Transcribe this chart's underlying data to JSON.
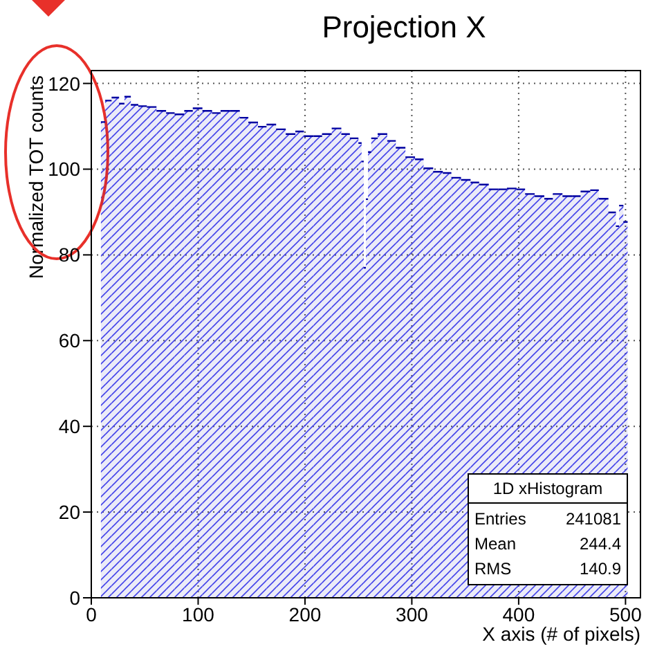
{
  "chart_data": {
    "type": "histogram",
    "title": "Projection X",
    "xlabel": "X axis (# of pixels)",
    "ylabel": "Normalized TOT counts",
    "bins": [
      9,
      13,
      19,
      26,
      31,
      37,
      44,
      52,
      61,
      70,
      78,
      87,
      95,
      104,
      113,
      121,
      130,
      139,
      147,
      156,
      164,
      173,
      182,
      191,
      199,
      208,
      216,
      225,
      234,
      242,
      250,
      253,
      255,
      257,
      259,
      262,
      268,
      277,
      285,
      294,
      303,
      311,
      320,
      329,
      337,
      346,
      355,
      363,
      372,
      381,
      389,
      398,
      406,
      415,
      424,
      432,
      441,
      450,
      458,
      467,
      475,
      484,
      491,
      494,
      498,
      502
    ],
    "values": [
      111,
      116,
      116.7,
      115.3,
      116.9,
      115,
      114.7,
      114.5,
      113.6,
      113.1,
      112.8,
      113.6,
      114.2,
      113.6,
      113.1,
      113.6,
      113.6,
      112,
      110.9,
      109.9,
      110.4,
      109.3,
      108.2,
      108.8,
      107.7,
      107.7,
      108.2,
      109.5,
      108.2,
      107.2,
      106.1,
      101.8,
      77,
      93,
      104,
      107.2,
      108.2,
      106.6,
      105,
      102.8,
      102.3,
      100.2,
      99.4,
      99.1,
      98,
      97.5,
      96.9,
      96.4,
      95.3,
      95.3,
      95.5,
      95.3,
      94.2,
      93.7,
      93.1,
      94.2,
      93.7,
      93.7,
      94.8,
      95.1,
      93.1,
      89.9,
      86.7,
      91.5,
      87.7
    ],
    "color": "#0000a0",
    "xlim": [
      0,
      514
    ],
    "ylim": [
      0,
      123
    ],
    "xticks": [
      0,
      100,
      200,
      300,
      400,
      500
    ],
    "yticks": [
      0,
      20,
      40,
      60,
      80,
      100,
      120
    ],
    "grid": true,
    "legend": false,
    "annotations": [
      "1D xHistogram",
      "Entries",
      "241081",
      "Mean",
      "244.4",
      "RMS",
      "140.9"
    ]
  }
}
